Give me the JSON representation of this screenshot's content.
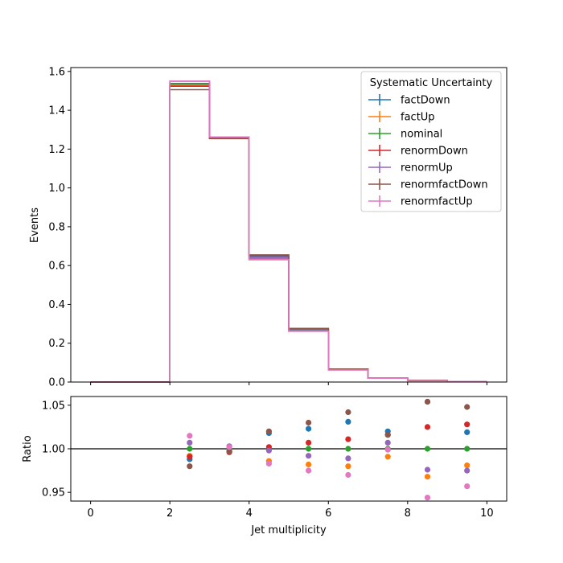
{
  "chart_data": [
    {
      "type": "step",
      "xlabel": "",
      "ylabel": "Events",
      "xlim": [
        -0.5,
        10.5
      ],
      "ylim": [
        0,
        1.62
      ],
      "xticks": [
        0,
        2,
        4,
        6,
        8,
        10
      ],
      "yticks": [
        0.0,
        0.2,
        0.4,
        0.6,
        0.8,
        1.0,
        1.2,
        1.4,
        1.6
      ],
      "ytick_labels": [
        "0.0",
        "0.2",
        "0.4",
        "0.6",
        "0.8",
        "1.0",
        "1.2",
        "1.4",
        "1.6"
      ],
      "bin_edges": [
        0,
        1,
        2,
        3,
        4,
        5,
        6,
        7,
        8,
        9,
        10
      ],
      "legend": {
        "title": "Systematic Uncertainty",
        "position": "upper-right"
      },
      "series": [
        {
          "name": "factDown",
          "color": "#1f77b4",
          "values": [
            0,
            0,
            1.535,
            1.254,
            0.647,
            0.273,
            0.066,
            0.02,
            0.008,
            0.003
          ]
        },
        {
          "name": "factUp",
          "color": "#ff7f0e",
          "values": [
            0,
            0,
            1.53,
            1.256,
            0.633,
            0.262,
            0.063,
            0.02,
            0.007,
            0.003
          ]
        },
        {
          "name": "nominal",
          "color": "#2ca02c",
          "values": [
            0,
            0,
            1.538,
            1.259,
            0.64,
            0.267,
            0.064,
            0.02,
            0.008,
            0.003
          ]
        },
        {
          "name": "renormDown",
          "color": "#d62728",
          "values": [
            0,
            0,
            1.524,
            1.255,
            0.652,
            0.276,
            0.066,
            0.02,
            0.008,
            0.003
          ]
        },
        {
          "name": "renormUp",
          "color": "#9467bd",
          "values": [
            0,
            0,
            1.55,
            1.262,
            0.639,
            0.265,
            0.063,
            0.02,
            0.007,
            0.003
          ]
        },
        {
          "name": "renormfactDown",
          "color": "#8c564b",
          "values": [
            0,
            0,
            1.506,
            1.255,
            0.655,
            0.276,
            0.067,
            0.02,
            0.008,
            0.003
          ]
        },
        {
          "name": "renormfactUp",
          "color": "#e377c2",
          "values": [
            0,
            0,
            1.55,
            1.262,
            0.63,
            0.262,
            0.062,
            0.02,
            0.007,
            0.003
          ]
        }
      ]
    },
    {
      "type": "scatter",
      "xlabel": "Jet multiplicity",
      "ylabel": "Ratio",
      "xlim": [
        -0.5,
        10.5
      ],
      "ylim": [
        0.94,
        1.06
      ],
      "xticks": [
        0,
        2,
        4,
        6,
        8,
        10
      ],
      "yticks": [
        0.95,
        1.0,
        1.05
      ],
      "ytick_labels": [
        "0.95",
        "1.00",
        "1.05"
      ],
      "reference_line": 1.0,
      "x": [
        2.5,
        3.5,
        4.5,
        5.5,
        6.5,
        7.5,
        8.5,
        9.5
      ],
      "series": [
        {
          "name": "factDown",
          "color": "#1f77b4",
          "values": [
            0.988,
            0.997,
            1.018,
            1.023,
            1.031,
            1.02,
            1.054,
            1.019
          ]
        },
        {
          "name": "factUp",
          "color": "#ff7f0e",
          "values": [
            0.992,
            0.998,
            0.986,
            0.982,
            0.98,
            0.991,
            0.968,
            0.981
          ]
        },
        {
          "name": "nominal",
          "color": "#2ca02c",
          "values": [
            1.0,
            1.0,
            1.0,
            1.0,
            1.0,
            1.0,
            1.0,
            1.0
          ]
        },
        {
          "name": "renormDown",
          "color": "#d62728",
          "values": [
            0.991,
            0.996,
            1.002,
            1.007,
            1.011,
            1.016,
            1.025,
            1.028
          ]
        },
        {
          "name": "renormUp",
          "color": "#9467bd",
          "values": [
            1.007,
            1.003,
            0.998,
            0.992,
            0.989,
            1.007,
            0.976,
            0.975
          ]
        },
        {
          "name": "renormfactDown",
          "color": "#8c564b",
          "values": [
            0.98,
            0.997,
            1.02,
            1.03,
            1.042,
            1.016,
            1.054,
            1.048
          ]
        },
        {
          "name": "renormfactUp",
          "color": "#e377c2",
          "values": [
            1.015,
            1.002,
            0.983,
            0.975,
            0.97,
            0.999,
            0.944,
            0.957
          ]
        }
      ]
    }
  ]
}
